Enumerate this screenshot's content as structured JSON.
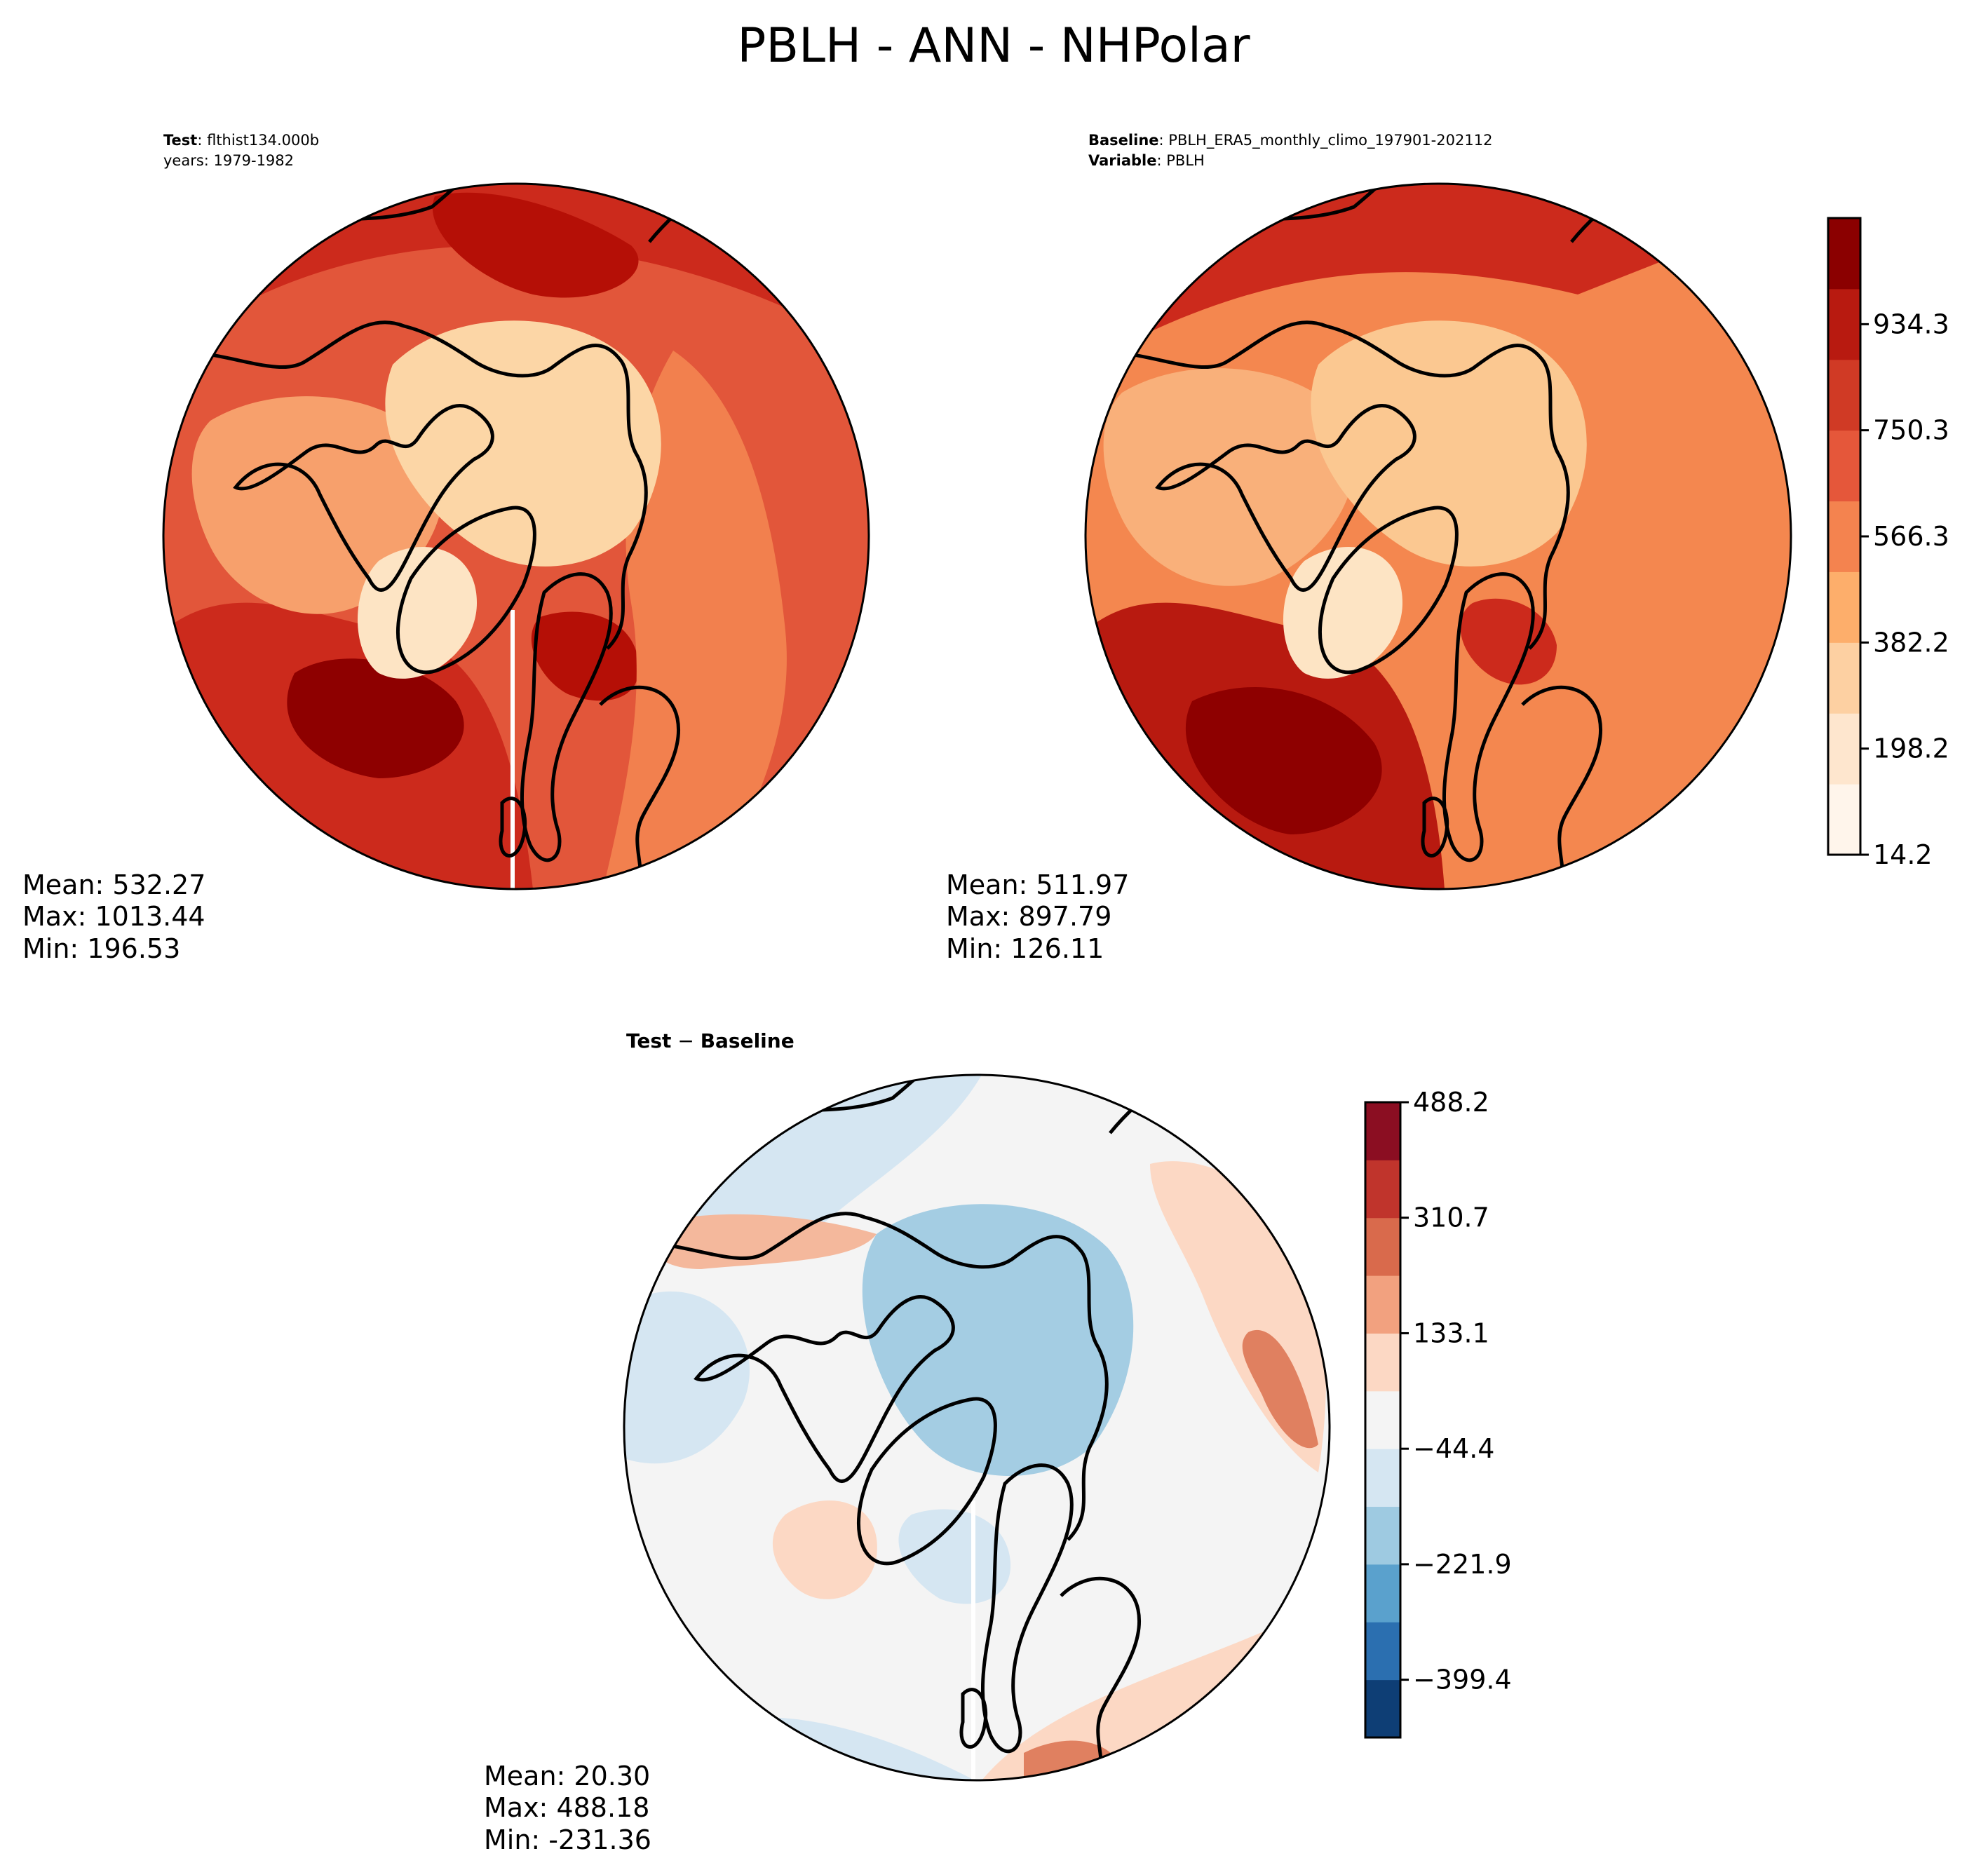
{
  "title": "PBLH - ANN - NHPolar",
  "panels": {
    "test": {
      "header_label": "Test",
      "header_value": "flthist134.000b",
      "years_line": "years: 1979-1982",
      "stats": {
        "mean": "Mean: 532.27",
        "max": "Max: 1013.44",
        "min": "Min: 196.53"
      }
    },
    "baseline": {
      "header_label": "Baseline",
      "header_value": "PBLH_ERA5_monthly_climo_197901-202112",
      "variable_label": "Variable",
      "variable_value": "PBLH",
      "stats": {
        "mean": "Mean: 511.97",
        "max": "Max: 897.79",
        "min": "Min: 126.11"
      }
    },
    "diff": {
      "title_left": "Test",
      "title_minus": " − ",
      "title_right": "Baseline",
      "stats": {
        "mean": "Mean: 20.30",
        "max": "Max: 488.18",
        "min": "Min: -231.36"
      }
    }
  },
  "colorbars": {
    "main": {
      "ticks": [
        "14.2",
        "198.2",
        "382.2",
        "566.3",
        "750.3",
        "934.3"
      ],
      "colors": [
        "#fff5eb",
        "#fee6ce",
        "#fdd0a2",
        "#fdae6b",
        "#f4834f",
        "#e5573a",
        "#d03a25",
        "#b81a10",
        "#8b0000"
      ]
    },
    "diff": {
      "ticks": [
        "−399.4",
        "−221.9",
        "−44.4",
        "133.1",
        "310.7",
        "488.2"
      ],
      "colors": [
        "#0e3e75",
        "#2b6fb0",
        "#5aa1cd",
        "#9ecae1",
        "#d5e6f2",
        "#f4f4f4",
        "#fcd8c4",
        "#f2a17f",
        "#d96a4c",
        "#c0342c",
        "#8b0e22"
      ]
    }
  },
  "map_colors": {
    "land_ice": "#fcd6a6",
    "mid": "#f7a06c",
    "warm": "#ee6b45",
    "hot": "#cc2a1c",
    "hottest": "#8e0000",
    "diff_neutral": "#f4f4f4",
    "diff_blue": "#d5e6f2",
    "diff_blue2": "#a4cde3",
    "diff_red": "#fcd8c4",
    "diff_red2": "#f0a080"
  }
}
